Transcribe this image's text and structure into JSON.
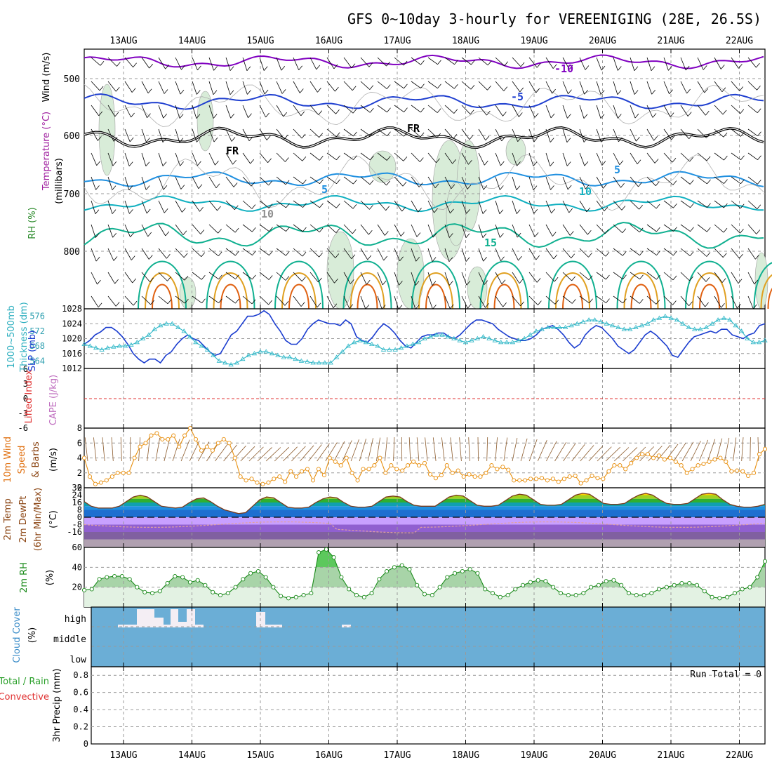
{
  "title": "GFS 0~10day 3-hourly for VEREENIGING (28E, 26.5S)",
  "dates": [
    "13AUG",
    "14AUG",
    "15AUG",
    "16AUG",
    "17AUG",
    "18AUG",
    "19AUG",
    "20AUG",
    "21AUG",
    "22AUG"
  ],
  "colors": {
    "t_neg10": "#8000c0",
    "t_neg5": "#2040d0",
    "t_5": "#2090e0",
    "t_10": "#10b0c0",
    "t_15": "#10b090",
    "t_20": "#e0a020",
    "t_25": "#e06010",
    "rh_fill": "#d8ecd8",
    "slp": "#1a3ccf",
    "thickness": "#30b8c8",
    "cape_line": "#e03030",
    "wind": "#e89010",
    "cloud": "#6baed6",
    "rh2m": "#1a8a1a"
  },
  "panels": {
    "upper": {
      "ylabels": [
        "Wind (m/s)",
        "Temperature (°C)",
        "RH (%)"
      ],
      "sublabel": "(millibars)",
      "ticks": [
        "500",
        "600",
        "700",
        "800"
      ],
      "contour_labels": [
        "-10",
        "-5",
        "FR",
        "FR",
        "5",
        "5",
        "10",
        "15",
        "10"
      ]
    },
    "slp": {
      "ylabels": [
        "1000~500mb",
        "Thickness (dm)",
        "SLP (mb)"
      ],
      "left_ticks": [
        "576",
        "572",
        "568",
        "564"
      ],
      "right_ticks": [
        "1028",
        "1024",
        "1020",
        "1016",
        "1012"
      ]
    },
    "cape": {
      "ylabels": [
        "Lifted Index",
        "CAPE (J/kg)"
      ],
      "ticks": [
        "6",
        "3",
        "0",
        "-3",
        "-6"
      ]
    },
    "wind": {
      "ylabels": [
        "10m Wind",
        "Speed",
        "& Barbs",
        "(m/s)"
      ],
      "ticks": [
        "8",
        "6",
        "4",
        "2",
        "0"
      ]
    },
    "temp": {
      "ylabels": [
        "2m Temp",
        "2m DewPt",
        "(6hr Min/Max)",
        "(°C)"
      ],
      "ticks": [
        "32",
        "24",
        "16",
        "8",
        "0",
        "-8",
        "-16"
      ]
    },
    "rh": {
      "ylabels": [
        "2m RH",
        "(%)"
      ],
      "ticks": [
        "60",
        "40",
        "20"
      ]
    },
    "cloud": {
      "ylabels": [
        "Cloud Cover",
        "(%)"
      ],
      "levels": [
        "high",
        "middle",
        "low"
      ]
    },
    "precip": {
      "ylabels": [
        "Total / Rain",
        "Convective",
        "3hr Precip (mm)"
      ],
      "ticks": [
        "0.8",
        "0.6",
        "0.4",
        "0.2",
        "0"
      ],
      "run_total": "Run Total = 0"
    }
  },
  "chart_data": [
    {
      "type": "line",
      "title": "SLP (mb)",
      "x_step_hours": 3,
      "ylim": [
        1012,
        1028
      ],
      "values": [
        1018.5,
        1019.5,
        1021,
        1021.8,
        1023,
        1023,
        1022,
        1020.5,
        1018.5,
        1016,
        1014.5,
        1013.5,
        1014.5,
        1014.5,
        1013.5,
        1015.5,
        1016.5,
        1018.5,
        1020,
        1021,
        1020,
        1019.5,
        1018,
        1016.5,
        1015.5,
        1016,
        1018.5,
        1021,
        1022,
        1024,
        1026,
        1026,
        1026.5,
        1027.5,
        1026.5,
        1024,
        1022,
        1019.5,
        1018.5,
        1018.5,
        1020,
        1022.5,
        1024,
        1025,
        1024.5,
        1024,
        1024,
        1023.5,
        1025,
        1024,
        1020.5,
        1019.5,
        1019,
        1020.5,
        1022.5,
        1024,
        1023,
        1021.5,
        1019.5,
        1018,
        1017.5,
        1019,
        1020.5,
        1021,
        1021,
        1021.5,
        1021.5,
        1020.5,
        1020,
        1021,
        1022.5,
        1024,
        1025,
        1025,
        1024.5,
        1024,
        1022.5,
        1021.5,
        1020.5,
        1020,
        1019.5,
        1019.5,
        1020,
        1021,
        1022.5,
        1023,
        1023.5,
        1022.5,
        1021,
        1019,
        1017.5,
        1018.5,
        1021,
        1022.5,
        1023.5,
        1023,
        1021.5,
        1020,
        1018,
        1017,
        1016,
        1017,
        1019,
        1021,
        1022,
        1021,
        1019.5,
        1018,
        1015.5,
        1015,
        1017,
        1019,
        1020.5,
        1021,
        1021.5,
        1022,
        1021.5,
        1022.5,
        1022.5,
        1021,
        1020.5,
        1020,
        1021,
        1021.5,
        1023.5,
        1024
      ],
      "series_name": "SLP"
    },
    {
      "type": "line",
      "title": "1000~500mb Thickness (dm)",
      "x_step_hours": 3,
      "ylim": [
        562,
        578
      ],
      "values": [
        568.5,
        568,
        567.5,
        567,
        567.5,
        567.8,
        568,
        568,
        568.3,
        569,
        570,
        571,
        572.5,
        573.5,
        574,
        574,
        573,
        572,
        570.5,
        569,
        568,
        567,
        565.5,
        564,
        563.5,
        563,
        563.5,
        564.5,
        565.5,
        566,
        566.5,
        566.5,
        566,
        565.5,
        565,
        565,
        564.5,
        564,
        563.8,
        563.5,
        563.5,
        563.5,
        563.5,
        565,
        566.5,
        568,
        569,
        569.5,
        569,
        568.5,
        568,
        567,
        567,
        567,
        567.5,
        568,
        568.5,
        569,
        570,
        570.5,
        571,
        571,
        570.5,
        570,
        569.5,
        569,
        569.5,
        570,
        570.5,
        570,
        569.5,
        569,
        569,
        569,
        569.5,
        570,
        571,
        572,
        572.5,
        573,
        573,
        573,
        573,
        573.5,
        574,
        574.5,
        575,
        575,
        574.5,
        574,
        573.5,
        573,
        572.5,
        572.5,
        573,
        573.5,
        574,
        575,
        575.5,
        576,
        575.5,
        575,
        574,
        573,
        572.5,
        572.5,
        573,
        574,
        575,
        575.5,
        575,
        573.5,
        572,
        570,
        569,
        569,
        569.5
      ]
    },
    {
      "type": "line",
      "title": "10m Wind Speed (m/s)",
      "x_step_hours": 3,
      "ylim": [
        0,
        8
      ],
      "values": [
        4,
        1.5,
        0.5,
        0.7,
        1,
        1.5,
        2,
        2,
        2,
        4,
        5.5,
        6,
        7,
        7.3,
        6.5,
        6.5,
        7,
        5.5,
        7,
        8,
        6.5,
        5,
        5.5,
        5,
        6,
        6.5,
        6,
        4,
        1.5,
        1,
        1.2,
        0.7,
        0.5,
        0.7,
        1.2,
        1.5,
        0.8,
        2.2,
        1.5,
        2.2,
        2.5,
        1,
        2.5,
        1.7,
        4,
        3.5,
        3,
        4,
        2,
        1,
        2.5,
        2.5,
        3,
        4,
        2,
        3,
        2.5,
        2.3,
        3,
        3.5,
        3,
        3.3,
        1.8,
        1.3,
        1.7,
        3,
        2,
        2.3,
        1.5,
        1.8,
        1.5,
        1.5,
        2,
        3,
        2.5,
        2.8,
        2.4,
        1,
        1,
        1,
        1.2,
        1.2,
        1.3,
        1,
        1.2,
        0.8,
        1.2,
        1.5,
        1.6,
        0.6,
        1,
        1.6,
        1.3,
        1.2,
        2.2,
        3,
        3,
        2.5,
        3.3,
        4,
        4.5,
        4.5,
        4,
        4.3,
        3.8,
        4,
        3.5,
        3,
        2,
        2.5,
        3,
        3.2,
        3.5,
        3.8,
        4,
        3.5,
        2.2,
        2.3,
        2.2,
        1.6,
        2,
        4.5,
        5.2
      ]
    },
    {
      "type": "area",
      "title": "2m Temp (°C)",
      "x_step_hours": 3,
      "ylim": [
        -32,
        32
      ],
      "values": [
        17,
        12,
        10,
        10,
        10,
        12,
        17,
        22,
        24,
        22,
        17,
        12,
        11,
        10,
        11,
        16,
        20,
        21,
        17,
        12,
        8,
        6,
        4,
        5,
        12,
        19,
        22,
        21,
        16,
        11,
        10,
        10,
        11,
        16,
        20,
        22,
        21,
        16,
        12,
        11,
        11,
        12,
        17,
        22,
        23,
        22,
        17,
        13,
        12,
        12,
        12,
        17,
        22,
        24,
        23,
        18,
        13,
        12,
        12,
        13,
        18,
        23,
        25,
        24,
        19,
        14,
        13,
        13,
        14,
        19,
        24,
        26,
        25,
        20,
        15,
        14,
        14,
        15,
        20,
        24,
        26,
        24,
        19,
        15,
        14,
        14,
        15,
        20,
        25,
        26,
        25,
        19,
        14,
        12,
        11,
        11,
        12,
        14
      ]
    },
    {
      "type": "area",
      "title": "2m RH (%)",
      "x_step_hours": 3,
      "ylim": [
        0,
        60
      ],
      "values": [
        17,
        18,
        28,
        30,
        31,
        31,
        28,
        20,
        15,
        14,
        16,
        24,
        31,
        30,
        25,
        27,
        22,
        15,
        12,
        14,
        20,
        28,
        34,
        36,
        30,
        20,
        11,
        9,
        10,
        12,
        14,
        55,
        58,
        50,
        30,
        18,
        12,
        10,
        14,
        28,
        36,
        40,
        42,
        38,
        22,
        13,
        12,
        20,
        30,
        34,
        36,
        38,
        34,
        18,
        14,
        10,
        12,
        18,
        22,
        25,
        27,
        26,
        20,
        14,
        12,
        12,
        14,
        20,
        22,
        26,
        27,
        22,
        14,
        12,
        12,
        14,
        18,
        20,
        22,
        24,
        24,
        22,
        16,
        10,
        9,
        10,
        14,
        18,
        20,
        30,
        46
      ]
    }
  ]
}
